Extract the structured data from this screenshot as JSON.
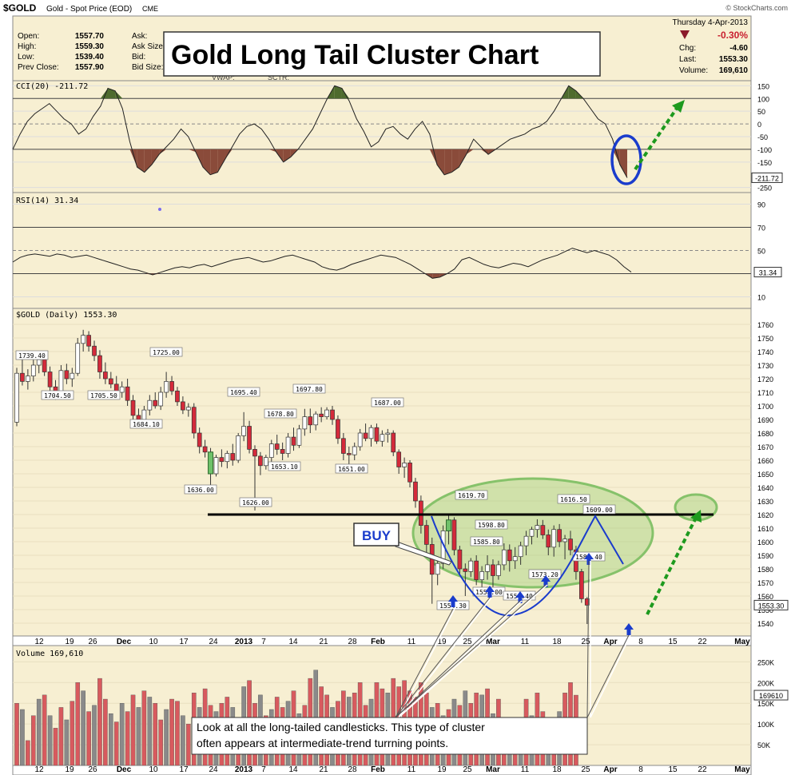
{
  "header": {
    "symbol": "$GOLD",
    "name": "Gold - Spot Price (EOD)",
    "exchange": "CME",
    "watermark": "© StockCharts.com",
    "left_labels": [
      "Open:",
      "High:",
      "Low:",
      "Prev Close:"
    ],
    "left_values": [
      "1557.70",
      "1559.30",
      "1539.40",
      "1557.90"
    ],
    "mid_labels": [
      "Ask:",
      "Ask Size:",
      "Bid:",
      "Bid Size:"
    ],
    "mid_extra": [
      "VWAP:",
      "SCTR:"
    ],
    "date": "Thursday 4-Apr-2013",
    "pct_change": "-0.30%",
    "right_labels": [
      "Chg:",
      "Last:",
      "Volume:"
    ],
    "right_values": [
      "-4.60",
      "1553.30",
      "169,610"
    ],
    "title": "Gold Long Tail Cluster Chart"
  },
  "panels": {
    "cci_label": "CCI(20) -211.72",
    "cci_last": "-211.72",
    "rsi_label": "RSI(14) 31.34",
    "rsi_last": "31.34",
    "price_label": "$GOLD (Daily) 1553.30",
    "price_last": "1553.30",
    "volume_label": "Volume 169,610",
    "volume_last": "169610"
  },
  "annotations": {
    "buy": "BUY",
    "note_line1": "Look at all the long-tailed candlesticks.  This type of cluster",
    "note_line2": "often appears at intermediate-trend turrning points."
  },
  "colors": {
    "up": "#ffffff",
    "down": "#d42a3a",
    "cci_pos": "#4e6b2e",
    "cci_neg": "#8a4b3a",
    "arrow": "#1a3ccc",
    "green_arrow": "#1e9a1e",
    "panel_bg": "#f7efd2"
  },
  "chart_data": [
    {
      "type": "candlestick",
      "title": "$GOLD (Daily) 1553.30",
      "ylim": [
        1530,
        1765
      ],
      "yticks": [
        1540,
        1550,
        1560,
        1570,
        1580,
        1590,
        1600,
        1610,
        1620,
        1630,
        1640,
        1650,
        1660,
        1670,
        1680,
        1690,
        1700,
        1710,
        1720,
        1730,
        1740,
        1750,
        1760
      ],
      "x_tick_labels": [
        "12",
        "19",
        "26",
        "Dec",
        "10",
        "17",
        "24",
        "2013",
        "7",
        "14",
        "21",
        "28",
        "Feb",
        "11",
        "19",
        "25",
        "Mar",
        "11",
        "18",
        "25",
        "Apr",
        "8",
        "15",
        "22",
        "May"
      ],
      "candles": [
        [
          1688,
          1728,
          1685,
          1724
        ],
        [
          1724,
          1735,
          1715,
          1718
        ],
        [
          1718,
          1727,
          1712,
          1722
        ],
        [
          1722,
          1734,
          1718,
          1730
        ],
        [
          1730,
          1739.4,
          1724,
          1734
        ],
        [
          1734,
          1738,
          1722,
          1725
        ],
        [
          1725,
          1729,
          1710,
          1714
        ],
        [
          1714,
          1719,
          1704.5,
          1708
        ],
        [
          1708,
          1730,
          1706,
          1726
        ],
        [
          1726,
          1731,
          1716,
          1720
        ],
        [
          1720,
          1728,
          1714,
          1724
        ],
        [
          1724,
          1750,
          1722,
          1746
        ],
        [
          1746,
          1756,
          1740,
          1752
        ],
        [
          1752,
          1755,
          1740,
          1744
        ],
        [
          1744,
          1748,
          1733,
          1737
        ],
        [
          1737,
          1741,
          1720,
          1725
        ],
        [
          1725,
          1732,
          1716,
          1720
        ],
        [
          1720,
          1725,
          1713,
          1716
        ],
        [
          1716,
          1722,
          1705.5,
          1710
        ],
        [
          1710,
          1718,
          1706,
          1714
        ],
        [
          1714,
          1720,
          1700,
          1704
        ],
        [
          1704,
          1708,
          1688,
          1693
        ],
        [
          1693,
          1698,
          1684.1,
          1690
        ],
        [
          1690,
          1700,
          1686,
          1697
        ],
        [
          1697,
          1708,
          1693,
          1704
        ],
        [
          1704,
          1710,
          1698,
          1700
        ],
        [
          1700,
          1714,
          1697,
          1710
        ],
        [
          1710,
          1725,
          1706,
          1718
        ],
        [
          1718,
          1722,
          1708,
          1711
        ],
        [
          1711,
          1714,
          1700,
          1703
        ],
        [
          1703,
          1707,
          1694,
          1697
        ],
        [
          1697,
          1702,
          1692,
          1699
        ],
        [
          1699,
          1702,
          1676,
          1680
        ],
        [
          1680,
          1684,
          1665,
          1670
        ],
        [
          1670,
          1675,
          1662,
          1666
        ],
        [
          1666,
          1669,
          1636,
          1650
        ],
        [
          1650,
          1664,
          1648,
          1662
        ],
        [
          1662,
          1668,
          1655,
          1659
        ],
        [
          1659,
          1667,
          1654,
          1665
        ],
        [
          1665,
          1672,
          1656,
          1660
        ],
        [
          1660,
          1680,
          1658,
          1678
        ],
        [
          1678,
          1695.4,
          1674,
          1685
        ],
        [
          1685,
          1689,
          1665,
          1668
        ],
        [
          1668,
          1671,
          1623,
          1663
        ],
        [
          1663,
          1666,
          1649,
          1656
        ],
        [
          1656,
          1664,
          1653.1,
          1662
        ],
        [
          1662,
          1675,
          1657,
          1672
        ],
        [
          1672,
          1678.8,
          1664,
          1668
        ],
        [
          1668,
          1673,
          1660,
          1665
        ],
        [
          1665,
          1680,
          1662,
          1677
        ],
        [
          1677,
          1684,
          1667,
          1671
        ],
        [
          1671,
          1686,
          1669,
          1683
        ],
        [
          1683,
          1697.8,
          1678,
          1692
        ],
        [
          1692,
          1698,
          1680,
          1686
        ],
        [
          1686,
          1696,
          1682,
          1694
        ],
        [
          1694,
          1699,
          1688,
          1692
        ],
        [
          1692,
          1699,
          1690,
          1697
        ],
        [
          1697,
          1700,
          1686,
          1690
        ],
        [
          1690,
          1693,
          1672,
          1676
        ],
        [
          1676,
          1680,
          1660,
          1665
        ],
        [
          1665,
          1670,
          1651,
          1664
        ],
        [
          1664,
          1673,
          1660,
          1670
        ],
        [
          1670,
          1683,
          1667,
          1680
        ],
        [
          1680,
          1687,
          1674,
          1676
        ],
        [
          1676,
          1686,
          1670,
          1684
        ],
        [
          1684,
          1687,
          1672,
          1674
        ],
        [
          1674,
          1682,
          1670,
          1679
        ],
        [
          1679,
          1683,
          1673,
          1680
        ],
        [
          1680,
          1682,
          1663,
          1666
        ],
        [
          1666,
          1668,
          1650,
          1655
        ],
        [
          1655,
          1662,
          1647,
          1658
        ],
        [
          1658,
          1660,
          1640,
          1644
        ],
        [
          1644,
          1647,
          1625,
          1630
        ],
        [
          1630,
          1634,
          1606,
          1612
        ],
        [
          1612,
          1616,
          1591,
          1598
        ],
        [
          1598,
          1603,
          1554.3,
          1576
        ],
        [
          1576,
          1588,
          1568,
          1584
        ],
        [
          1584,
          1612,
          1580,
          1608
        ],
        [
          1608,
          1619.7,
          1598,
          1616
        ],
        [
          1616,
          1618,
          1590,
          1594
        ],
        [
          1594,
          1597,
          1576,
          1580
        ],
        [
          1580,
          1584,
          1560,
          1578
        ],
        [
          1578,
          1588,
          1574,
          1585.8
        ],
        [
          1585.8,
          1590,
          1568,
          1572
        ],
        [
          1572,
          1582,
          1560,
          1578
        ],
        [
          1578,
          1590,
          1572,
          1583
        ],
        [
          1583,
          1587,
          1562,
          1575
        ],
        [
          1575,
          1586,
          1572,
          1583
        ],
        [
          1583,
          1598.8,
          1579,
          1594
        ],
        [
          1594,
          1598,
          1578,
          1586
        ],
        [
          1586,
          1596,
          1580,
          1589
        ],
        [
          1589,
          1600,
          1583,
          1597
        ],
        [
          1597,
          1608,
          1590,
          1604
        ],
        [
          1604,
          1611,
          1598,
          1609
        ],
        [
          1609,
          1616.5,
          1603,
          1612
        ],
        [
          1612,
          1616,
          1602,
          1605
        ],
        [
          1605,
          1609,
          1590,
          1596
        ],
        [
          1596,
          1612,
          1589,
          1609
        ],
        [
          1609,
          1613,
          1596,
          1600
        ],
        [
          1600,
          1605,
          1587,
          1602
        ],
        [
          1602,
          1608,
          1590,
          1594
        ],
        [
          1594,
          1597,
          1572,
          1578
        ],
        [
          1578,
          1580,
          1555,
          1558
        ],
        [
          1558,
          1559.3,
          1539.4,
          1553.3
        ]
      ],
      "price_labels": [
        "1739.40",
        "1704.50",
        "1705.50",
        "1725.00",
        "1684.10",
        "1636.00",
        "1695.40",
        "1626.00",
        "1678.80",
        "1653.10",
        "1697.80",
        "1651.00",
        "1687.00",
        "1619.70",
        "1554.30",
        "1585.80",
        "1598.80",
        "1616.50",
        "1609.00",
        "1558.00",
        "1556.40",
        "1573.20",
        "1581.40"
      ],
      "resistance": 1620
    },
    {
      "type": "line",
      "title": "CCI(20) -211.72",
      "ylim": [
        -270,
        170
      ],
      "yticks": [
        150,
        100,
        50,
        0,
        -50,
        -100,
        -150,
        -250
      ],
      "values": [
        -100,
        -40,
        10,
        40,
        60,
        80,
        50,
        20,
        0,
        -40,
        -20,
        30,
        70,
        140,
        130,
        60,
        -70,
        -170,
        -190,
        -160,
        -120,
        -90,
        -60,
        -20,
        -50,
        -110,
        -170,
        -200,
        -190,
        -140,
        -90,
        -40,
        -10,
        0,
        -20,
        -60,
        -110,
        -150,
        -130,
        -100,
        -60,
        -20,
        40,
        100,
        150,
        140,
        90,
        20,
        -30,
        -90,
        -70,
        -20,
        -10,
        -40,
        -60,
        -20,
        10,
        -40,
        -160,
        -200,
        -190,
        -170,
        -120,
        -60,
        -90,
        -120,
        -100,
        -80,
        -60,
        -50,
        -40,
        -20,
        -10,
        10,
        50,
        100,
        150,
        130,
        100,
        60,
        20,
        0,
        -60,
        -160,
        -211.72
      ]
    },
    {
      "type": "line",
      "title": "RSI(14) 31.34",
      "ylim": [
        0,
        100
      ],
      "yticks": [
        90,
        70,
        50,
        30,
        10
      ],
      "values": [
        40,
        44,
        46,
        47,
        46,
        45,
        47,
        46,
        44,
        45,
        46,
        44,
        42,
        40,
        38,
        36,
        34,
        33,
        31,
        29,
        31,
        33,
        35,
        36,
        35,
        37,
        38,
        36,
        38,
        40,
        42,
        43,
        44,
        42,
        40,
        41,
        43,
        45,
        46,
        44,
        42,
        40,
        36,
        34,
        33,
        35,
        38,
        40,
        42,
        44,
        46,
        45,
        44,
        41,
        38,
        34,
        30,
        26,
        27,
        30,
        34,
        42,
        44,
        41,
        38,
        36,
        35,
        37,
        39,
        38,
        36,
        39,
        42,
        44,
        46,
        49,
        52,
        50,
        48,
        50,
        48,
        46,
        42,
        36,
        31.34
      ]
    },
    {
      "type": "bar",
      "title": "Volume 169,610",
      "yticks": [
        "250K",
        "200K",
        "150K",
        "100K",
        "50K"
      ],
      "ylim": [
        0,
        270000
      ],
      "values": [
        150000,
        135000,
        60000,
        120000,
        160000,
        170000,
        120000,
        90000,
        140000,
        110000,
        155000,
        200000,
        180000,
        130000,
        145000,
        210000,
        160000,
        125000,
        105000,
        150000,
        130000,
        170000,
        140000,
        180000,
        165000,
        150000,
        110000,
        135000,
        160000,
        155000,
        120000,
        100000,
        175000,
        140000,
        185000,
        145000,
        130000,
        150000,
        165000,
        140000,
        115000,
        190000,
        205000,
        150000,
        170000,
        120000,
        135000,
        165000,
        140000,
        155000,
        180000,
        125000,
        145000,
        210000,
        230000,
        190000,
        170000,
        140000,
        155000,
        180000,
        165000,
        175000,
        200000,
        145000,
        160000,
        200000,
        185000,
        175000,
        210000,
        190000,
        205000,
        180000,
        165000,
        200000,
        175000,
        140000,
        150000,
        120000,
        135000,
        160000,
        145000,
        180000,
        150000,
        175000,
        170000,
        185000,
        125000,
        160000,
        100000,
        90000,
        85000,
        115000,
        160000,
        120000,
        175000,
        130000,
        110000,
        90000,
        130000,
        175000,
        200000,
        169610
      ],
      "colors_up": [
        0,
        1,
        0,
        0,
        1,
        0,
        1,
        0,
        0,
        1,
        0,
        0,
        1,
        0,
        1,
        0,
        0,
        1,
        0,
        1,
        0,
        0,
        1,
        0,
        1,
        0,
        0,
        1,
        0,
        0,
        1,
        0,
        0,
        1,
        0,
        0,
        1,
        0,
        0,
        1,
        0,
        1,
        0,
        0,
        1,
        0,
        1,
        0,
        0,
        1,
        0,
        1,
        0,
        0,
        1,
        0,
        0,
        1,
        0,
        0,
        1,
        0,
        0,
        0,
        1,
        0,
        0,
        1,
        0,
        0,
        0,
        0,
        0,
        0,
        0,
        1,
        0,
        1,
        0,
        1,
        0,
        1,
        0,
        0,
        1,
        0,
        1,
        0,
        0,
        1,
        0,
        1,
        0,
        1,
        0,
        0,
        1,
        0,
        1,
        0,
        0,
        0
      ]
    }
  ]
}
